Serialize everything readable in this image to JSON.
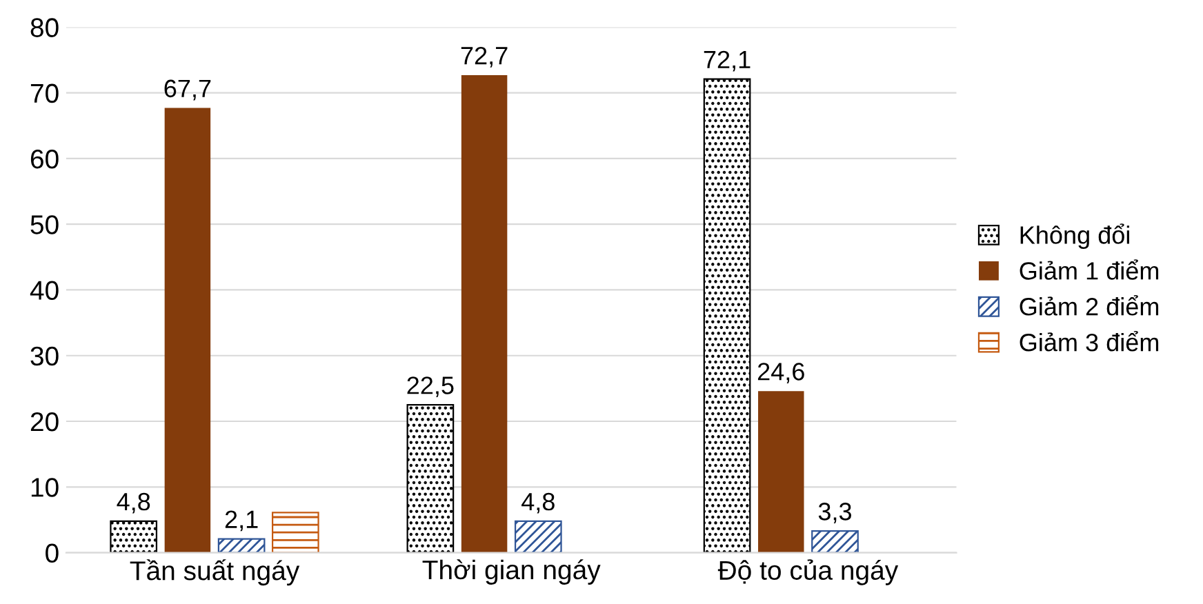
{
  "chart_data": {
    "type": "bar",
    "categories": [
      "Tần suất ngáy",
      "Thời gian ngáy",
      "Độ to của ngáy"
    ],
    "series": [
      {
        "name": "Không đổi",
        "color": "#000000",
        "values": [
          4.8,
          22.5,
          72.1
        ],
        "value_labels": [
          "4,8",
          "22,5",
          "72,1"
        ]
      },
      {
        "name": "Giảm 1 điểm",
        "color": "#843c0c",
        "values": [
          67.7,
          72.7,
          24.6
        ],
        "value_labels": [
          "67,7",
          "72,7",
          "24,6"
        ]
      },
      {
        "name": "Giảm 2 điểm",
        "color": "#2f5597",
        "values": [
          2.1,
          4.8,
          3.3
        ],
        "value_labels": [
          "2,1",
          "4,8",
          "3,3"
        ]
      },
      {
        "name": "Giảm 3 điểm",
        "color": "#c55a11",
        "values": [
          6.1,
          null,
          null
        ],
        "value_labels": [
          null,
          null,
          null
        ]
      }
    ],
    "ylim": [
      0,
      80
    ],
    "yticks": [
      0,
      10,
      20,
      30,
      40,
      50,
      60,
      70,
      80
    ],
    "grid": "y",
    "legend": "right"
  }
}
